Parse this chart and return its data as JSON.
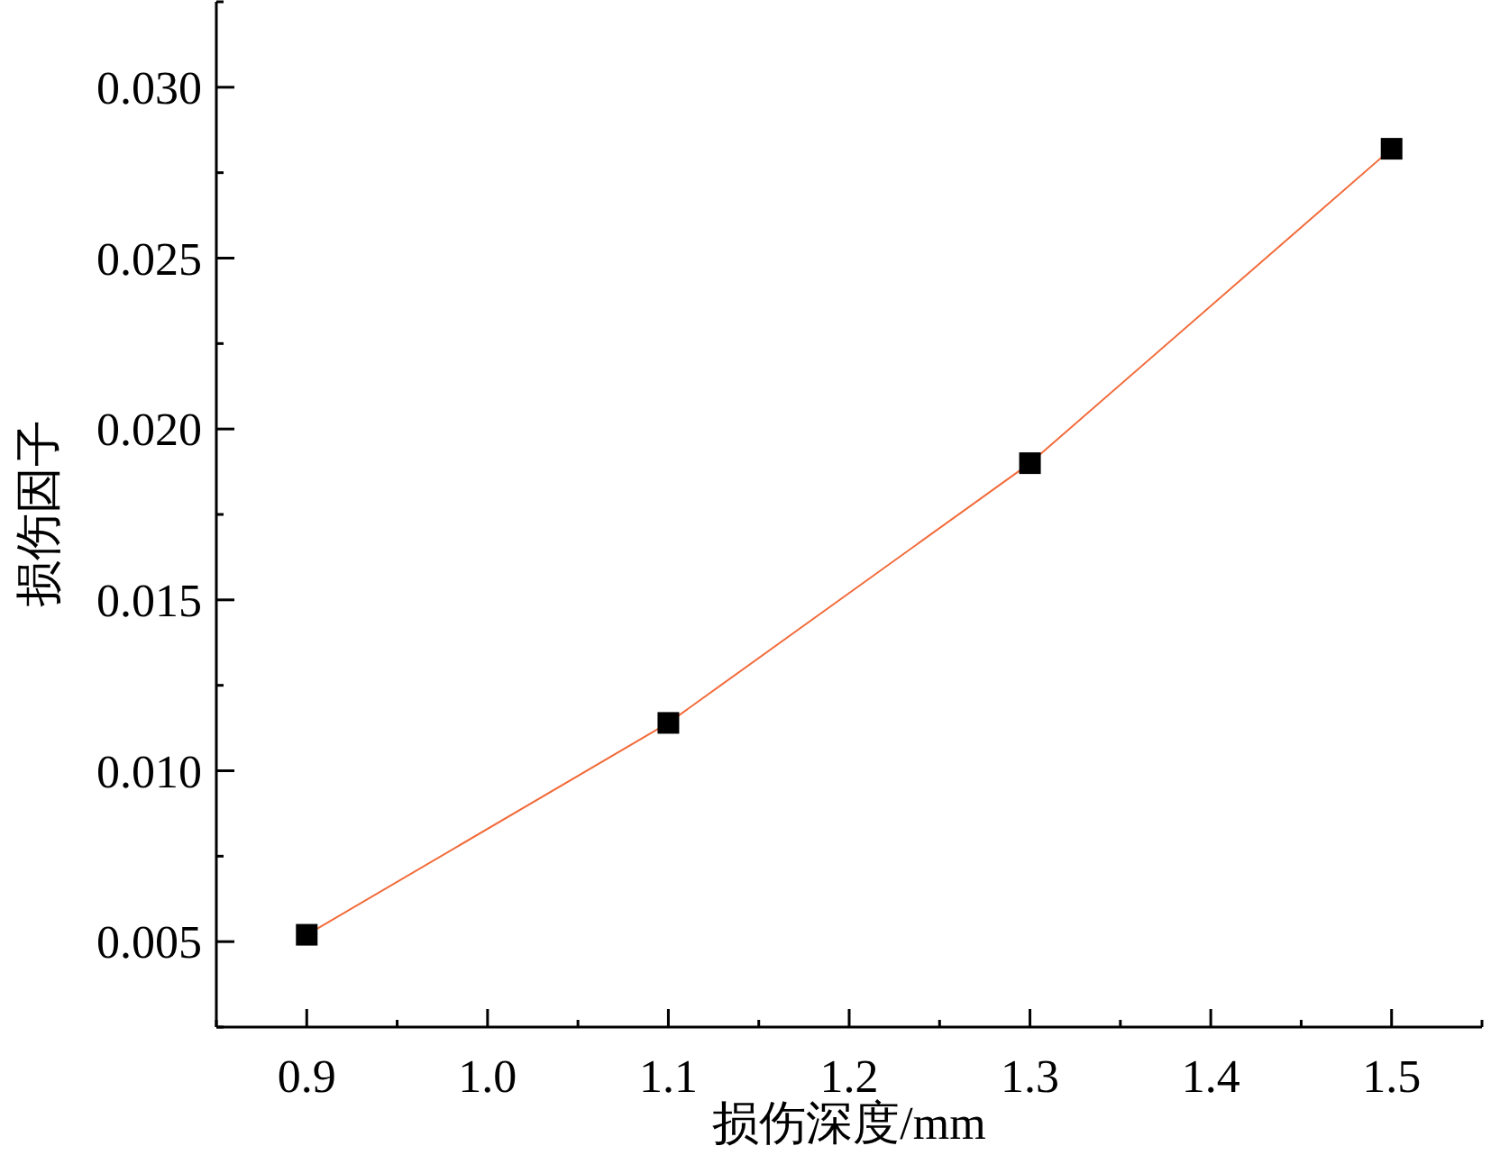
{
  "chart_data": {
    "type": "line",
    "xlabel": "损伤深度/mm",
    "ylabel": "损伤因子",
    "x": [
      0.9,
      1.1,
      1.3,
      1.5
    ],
    "values": [
      0.0052,
      0.0114,
      0.019,
      0.0282
    ],
    "color": "#f26b3a",
    "colors": [
      "#000000",
      "#000000",
      "#000000",
      "#000000"
    ],
    "marker": "square",
    "line_style": "solid",
    "xlim": [
      0.85,
      1.55
    ],
    "xticks": [
      {
        "value": 0.85,
        "label": null
      },
      0.9,
      {
        "value": 0.95,
        "label": null
      },
      {
        "value": 1,
        "label": "1.0"
      },
      {
        "value": 1.05,
        "label": null
      },
      1.1,
      {
        "value": 1.15,
        "label": null
      },
      1.2,
      {
        "value": 1.25,
        "label": null
      },
      1.3,
      {
        "value": 1.35,
        "label": null
      },
      1.4,
      {
        "value": 1.45,
        "label": null
      },
      1.5,
      {
        "value": 1.55,
        "label": null
      }
    ],
    "ylim": [
      0.0025,
      0.0325
    ],
    "yticks": [
      {
        "value": 0.0025,
        "label": null
      },
      0.005,
      {
        "value": 0.0075,
        "label": null
      },
      {
        "value": 0.01,
        "label": "0.010"
      },
      {
        "value": 0.0125,
        "label": null
      },
      0.015,
      {
        "value": 0.0175,
        "label": null
      },
      {
        "value": 0.02,
        "label": "0.020"
      },
      {
        "value": 0.0225,
        "label": null
      },
      0.025,
      {
        "value": 0.0275,
        "label": null
      },
      {
        "value": 0.03,
        "label": "0.030"
      },
      {
        "value": 0.0325,
        "label": null
      }
    ]
  }
}
